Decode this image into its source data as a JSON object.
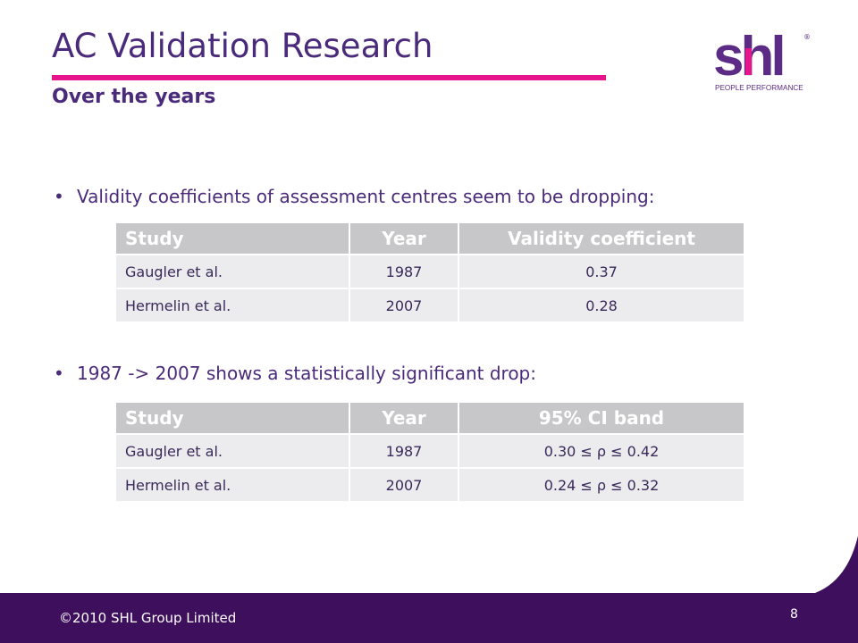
{
  "slide": {
    "title": "AC Validation Research",
    "subtitle": "Over the years"
  },
  "logo": {
    "wordmark": "shl",
    "tagline": "PEOPLE PERFORMANCE",
    "registered": "®",
    "colors": {
      "wordmark": "#5b2b86",
      "accent": "#e8148c"
    }
  },
  "bullets": [
    "Validity coefficients of assessment centres seem to be dropping:",
    "1987 -> 2007 shows a statistically significant drop:"
  ],
  "table1": {
    "headers": [
      "Study",
      "Year",
      "Validity coefficient"
    ],
    "rows": [
      [
        "Gaugler et al.",
        "1987",
        "0.37"
      ],
      [
        "Hermelin et al.",
        "2007",
        "0.28"
      ]
    ]
  },
  "table2": {
    "headers": [
      "Study",
      "Year",
      "95% CI band"
    ],
    "rows": [
      [
        "Gaugler et al.",
        "1987",
        "0.30 ≤ ρ ≤ 0.42"
      ],
      [
        "Hermelin et al.",
        "2007",
        "0.24 ≤ ρ ≤ 0.32"
      ]
    ]
  },
  "footer": {
    "copyright": "©2010 SHL Group Limited",
    "page_number": "8"
  },
  "colors": {
    "title": "#4a2a7a",
    "rule": "#e8148c",
    "footer_band": "#3d0f5c",
    "header_cell": "#c7c7c9",
    "body_cell": "#ececee"
  }
}
